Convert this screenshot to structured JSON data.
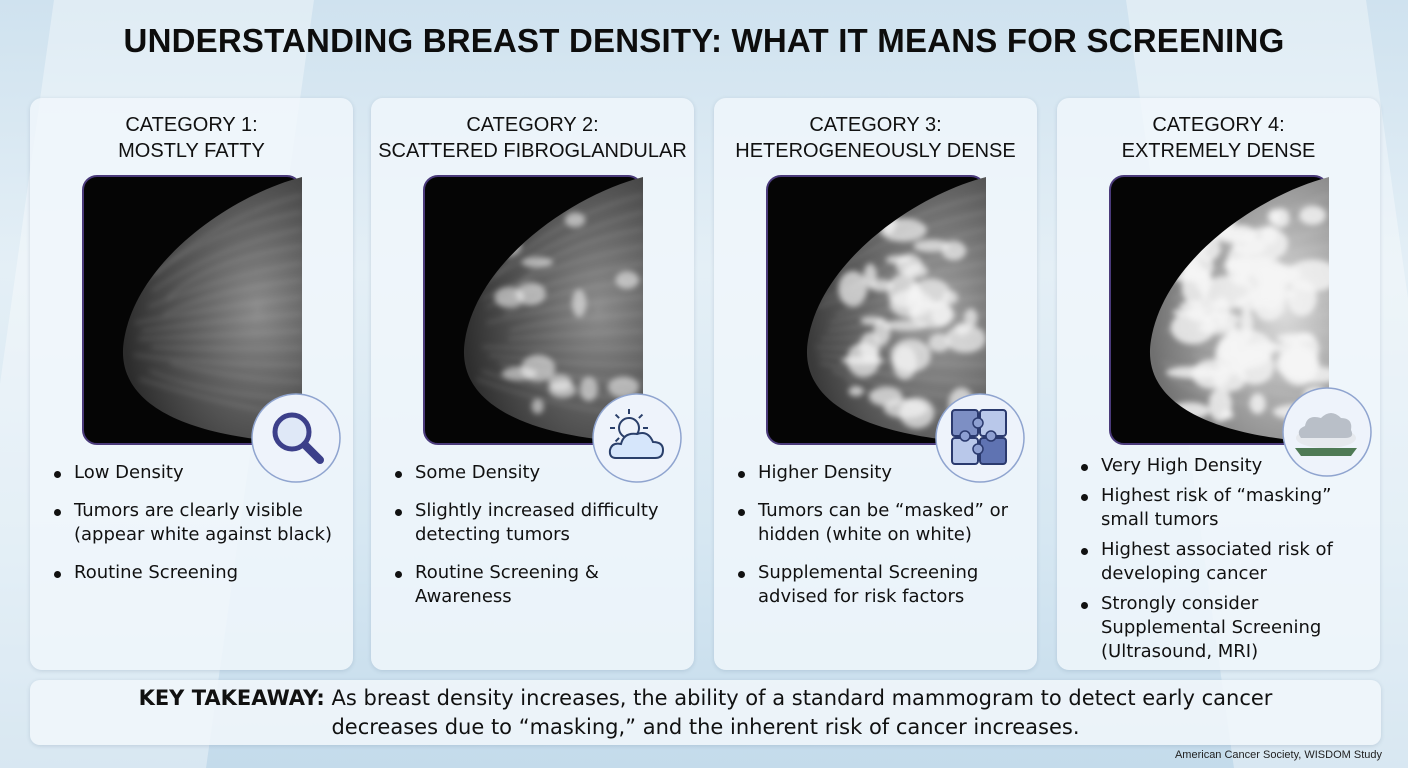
{
  "title": "UNDERSTANDING BREAST DENSITY: WHAT IT MEANS FOR SCREENING",
  "cards": [
    {
      "category": "CATEGORY 1:",
      "name": "MOSTLY FATTY",
      "bullets": [
        "Low Density",
        "Tumors are clearly visible (appear white against black)",
        "Routine Screening"
      ]
    },
    {
      "category": "CATEGORY 2:",
      "name": "SCATTERED FIBROGLANDULAR",
      "bullets": [
        "Some Density",
        "Slightly increased difficulty detecting tumors",
        "Routine Screening & Awareness"
      ]
    },
    {
      "category": "CATEGORY 3:",
      "name": "HETEROGENEOUSLY DENSE",
      "bullets": [
        "Higher Density",
        "Tumors can be “masked” or hidden (white on white)",
        "Supplemental Screening advised for risk factors"
      ]
    },
    {
      "category": "CATEGORY 4:",
      "name": "EXTREMELY DENSE",
      "bullets": [
        "Very High Density",
        "Highest risk of “masking” small tumors",
        "Highest associated risk of developing cancer",
        "Strongly consider Supplemental Screening (Ultrasound, MRI)"
      ]
    }
  ],
  "takeaway": {
    "label": "KEY TAKEAWAY:",
    "text": "As breast density increases, the ability of a standard mammogram to detect early cancer decreases due to “masking,” and the inherent risk of cancer increases."
  },
  "source": "American Cancer Society, WISDOM Study"
}
